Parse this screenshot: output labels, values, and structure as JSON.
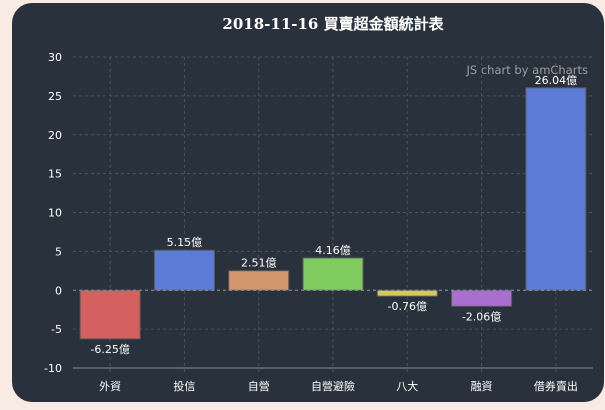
{
  "chart_data": {
    "type": "bar",
    "title": "2018-11-16 買賣超金額統計表",
    "categories": [
      "外資",
      "投信",
      "自營",
      "自營避險",
      "八大",
      "融資",
      "借券賣出"
    ],
    "values": [
      -6.25,
      5.15,
      2.51,
      4.16,
      -0.76,
      -2.06,
      26.04
    ],
    "data_labels": [
      "-6.25億",
      "5.15億",
      "2.51億",
      "4.16億",
      "-0.76億",
      "-2.06億",
      "26.04億"
    ],
    "colors": [
      "#d46060",
      "#5b7bd6",
      "#d4966c",
      "#80cc5f",
      "#d4c85f",
      "#a86fd0",
      "#5b7bd6"
    ],
    "yticks": [
      "30",
      "25",
      "20",
      "15",
      "10",
      "5",
      "0",
      "-5",
      "-10"
    ],
    "ylim": [
      -10,
      30
    ],
    "grid": true,
    "xlabel": "",
    "ylabel": "",
    "credit": "JS chart by amCharts"
  }
}
